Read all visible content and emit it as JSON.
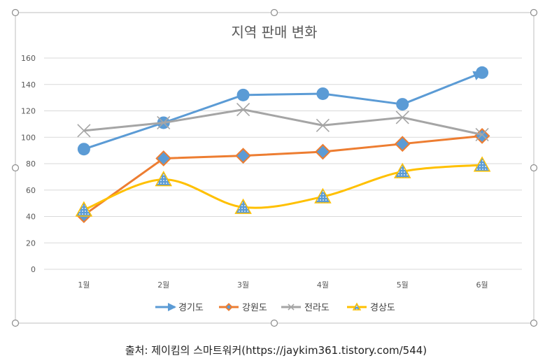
{
  "chart_data": {
    "type": "line",
    "title": "지역 판매 변화",
    "categories": [
      "1월",
      "2월",
      "3월",
      "4월",
      "5월",
      "6월"
    ],
    "ylim": [
      0,
      160
    ],
    "yticks": [
      0,
      20,
      40,
      60,
      80,
      100,
      120,
      140,
      160
    ],
    "grid": true,
    "legend": "bottom",
    "series": [
      {
        "name": "경기도",
        "values": [
          91,
          111,
          132,
          133,
          125,
          149
        ],
        "color": "#5b9bd5",
        "marker": "circle",
        "smooth": false
      },
      {
        "name": "강원도",
        "values": [
          41,
          84,
          86,
          89,
          95,
          101
        ],
        "color": "#ed7d31",
        "marker": "diamond",
        "smooth": false
      },
      {
        "name": "전라도",
        "values": [
          105,
          111,
          121,
          109,
          115,
          102
        ],
        "color": "#a5a5a5",
        "marker": "x",
        "smooth": false
      },
      {
        "name": "경상도",
        "values": [
          45,
          68,
          47,
          55,
          74,
          79
        ],
        "color": "#ffc000",
        "marker": "triangle",
        "smooth": true
      }
    ]
  },
  "source_text": "출처: 제이킴의 스마트워커(https://jaykim361.tistory.com/544)"
}
